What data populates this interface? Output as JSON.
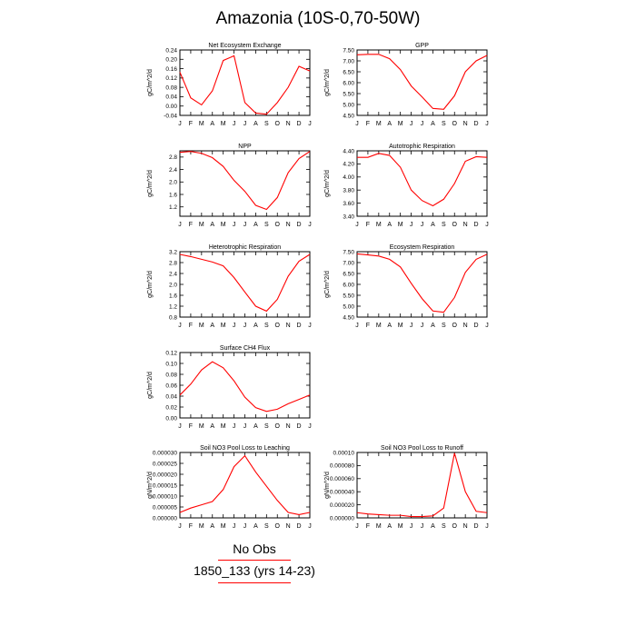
{
  "title": "Amazonia (10S-0,70-50W)",
  "legend": {
    "obs_label": "No Obs",
    "case_label": "1850_133 (yrs 14-23)",
    "case_color": "#ff0000"
  },
  "chart_data": [
    {
      "type": "line",
      "title": "Net Ecosystem Exchange",
      "ylabel": "gC/m^2/d",
      "categories": [
        "J",
        "F",
        "M",
        "A",
        "M",
        "J",
        "J",
        "A",
        "S",
        "O",
        "N",
        "D",
        "J"
      ],
      "ylim": [
        -0.04,
        0.24
      ],
      "yticks": [
        "-0.04",
        "0.00",
        "0.04",
        "0.08",
        "0.12",
        "0.16",
        "0.20",
        "0.24"
      ],
      "series": [
        {
          "color": "#ff0000",
          "values": [
            0.145,
            0.035,
            0.005,
            0.065,
            0.195,
            0.215,
            0.015,
            -0.03,
            -0.035,
            0.015,
            0.08,
            0.17,
            0.15
          ]
        }
      ]
    },
    {
      "type": "line",
      "title": "GPP",
      "ylabel": "gC/m^2/d",
      "categories": [
        "J",
        "F",
        "M",
        "A",
        "M",
        "J",
        "J",
        "A",
        "S",
        "O",
        "N",
        "D",
        "J"
      ],
      "ylim": [
        4.5,
        7.5
      ],
      "yticks": [
        "4.50",
        "5.00",
        "5.50",
        "6.00",
        "6.50",
        "7.00",
        "7.50"
      ],
      "series": [
        {
          "color": "#ff0000",
          "values": [
            7.28,
            7.3,
            7.3,
            7.1,
            6.6,
            5.85,
            5.35,
            4.82,
            4.78,
            5.4,
            6.5,
            7.0,
            7.25
          ]
        }
      ]
    },
    {
      "type": "line",
      "title": "NPP",
      "ylabel": "gC/m^2/d",
      "categories": [
        "J",
        "F",
        "M",
        "A",
        "M",
        "J",
        "J",
        "A",
        "S",
        "O",
        "N",
        "D",
        "J"
      ],
      "ylim": [
        0.9,
        3.0
      ],
      "yticks": [
        "1.2",
        "1.6",
        "2.0",
        "2.4",
        "2.8"
      ],
      "series": [
        {
          "color": "#ff0000",
          "values": [
            2.95,
            2.98,
            2.92,
            2.78,
            2.5,
            2.05,
            1.7,
            1.25,
            1.12,
            1.5,
            2.3,
            2.75,
            2.98
          ]
        }
      ]
    },
    {
      "type": "line",
      "title": "Autotrophic Respiration",
      "ylabel": "gC/m^2/d",
      "categories": [
        "J",
        "F",
        "M",
        "A",
        "M",
        "J",
        "J",
        "A",
        "S",
        "O",
        "N",
        "D",
        "J"
      ],
      "ylim": [
        3.4,
        4.4
      ],
      "yticks": [
        "3.40",
        "3.60",
        "3.80",
        "4.00",
        "4.20",
        "4.40"
      ],
      "series": [
        {
          "color": "#ff0000",
          "values": [
            4.3,
            4.3,
            4.36,
            4.33,
            4.15,
            3.8,
            3.64,
            3.56,
            3.66,
            3.9,
            4.24,
            4.31,
            4.3
          ]
        }
      ]
    },
    {
      "type": "line",
      "title": "Heterotrophic Respiration",
      "ylabel": "gC/m^2/d",
      "categories": [
        "J",
        "F",
        "M",
        "A",
        "M",
        "J",
        "J",
        "A",
        "S",
        "O",
        "N",
        "D",
        "J"
      ],
      "ylim": [
        0.8,
        3.2
      ],
      "yticks": [
        "0.8",
        "1.2",
        "1.6",
        "2.0",
        "2.4",
        "2.8",
        "3.2"
      ],
      "series": [
        {
          "color": "#ff0000",
          "values": [
            3.1,
            3.02,
            2.92,
            2.82,
            2.68,
            2.25,
            1.72,
            1.2,
            1.02,
            1.45,
            2.3,
            2.85,
            3.1
          ]
        }
      ]
    },
    {
      "type": "line",
      "title": "Ecosystem Respiration",
      "ylabel": "gC/m^2/d",
      "categories": [
        "J",
        "F",
        "M",
        "A",
        "M",
        "J",
        "J",
        "A",
        "S",
        "O",
        "N",
        "D",
        "J"
      ],
      "ylim": [
        4.5,
        7.5
      ],
      "yticks": [
        "4.50",
        "5.00",
        "5.50",
        "6.00",
        "6.50",
        "7.00",
        "7.50"
      ],
      "series": [
        {
          "color": "#ff0000",
          "values": [
            7.4,
            7.35,
            7.3,
            7.15,
            6.8,
            6.05,
            5.35,
            4.78,
            4.72,
            5.4,
            6.55,
            7.15,
            7.38
          ]
        }
      ]
    },
    {
      "type": "line",
      "title": "Surface CH4 Flux",
      "ylabel": "gC/m^2/d",
      "categories": [
        "J",
        "F",
        "M",
        "A",
        "M",
        "J",
        "J",
        "A",
        "S",
        "O",
        "N",
        "D",
        "J"
      ],
      "ylim": [
        0.0,
        0.12
      ],
      "yticks": [
        "0.00",
        "0.02",
        "0.04",
        "0.06",
        "0.08",
        "0.10",
        "0.12"
      ],
      "series": [
        {
          "color": "#ff0000",
          "values": [
            0.042,
            0.062,
            0.088,
            0.103,
            0.092,
            0.068,
            0.038,
            0.019,
            0.012,
            0.016,
            0.026,
            0.034,
            0.042
          ]
        }
      ]
    },
    {
      "type": "line",
      "title": "Soil NO3 Pool Loss to Leaching",
      "ylabel": "gN/m^2/d",
      "categories": [
        "J",
        "F",
        "M",
        "A",
        "M",
        "J",
        "J",
        "A",
        "S",
        "O",
        "N",
        "D",
        "J"
      ],
      "ylim": [
        0.0,
        3e-05
      ],
      "yticks": [
        "0.000000",
        "0.000005",
        "0.000010",
        "0.000015",
        "0.000020",
        "0.000025",
        "0.000030"
      ],
      "series": [
        {
          "color": "#ff0000",
          "values": [
            2.5e-06,
            4.5e-06,
            6e-06,
            7.5e-06,
            1.3e-05,
            2.35e-05,
            2.85e-05,
            2.1e-05,
            1.45e-05,
            8e-06,
            2.5e-06,
            1.5e-06,
            2.5e-06
          ]
        }
      ]
    },
    {
      "type": "line",
      "title": "Soil NO3 Pool Loss to Runoff",
      "ylabel": "gN/m^2/d",
      "categories": [
        "J",
        "F",
        "M",
        "A",
        "M",
        "J",
        "J",
        "A",
        "S",
        "O",
        "N",
        "D",
        "J"
      ],
      "ylim": [
        0.0,
        0.0001
      ],
      "yticks": [
        "0.000000",
        "0.000020",
        "0.000040",
        "0.000060",
        "0.000080",
        "0.00010"
      ],
      "series": [
        {
          "color": "#ff0000",
          "values": [
            8e-06,
            6e-06,
            5e-06,
            4e-06,
            4e-06,
            2e-06,
            2e-06,
            3e-06,
            1.5e-05,
            9.9e-05,
            4e-05,
            1e-05,
            8e-06
          ]
        }
      ]
    }
  ]
}
